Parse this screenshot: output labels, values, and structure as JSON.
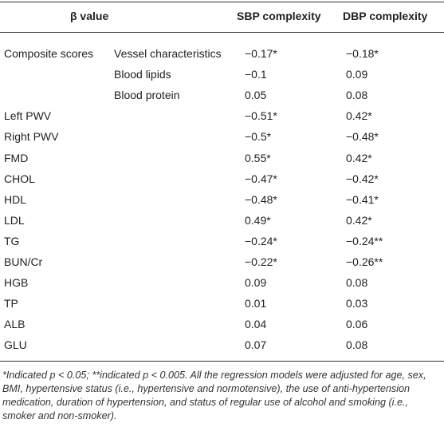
{
  "table": {
    "header": [
      "β value",
      "SBP complexity",
      "DBP complexity"
    ],
    "rows": [
      {
        "label": "Composite scores",
        "measure": "Vessel characteristics",
        "sbp": "−0.17*",
        "dbp": "−0.18*"
      },
      {
        "measure": "Blood lipids",
        "sbp": "−0.1",
        "dbp": "0.09"
      },
      {
        "measure": "Blood protein",
        "sbp": "0.05",
        "dbp": "0.08"
      },
      {
        "label": "Left PWV",
        "sbp": "−0.51*",
        "dbp": "0.42*"
      },
      {
        "label": "Right PWV",
        "sbp": "−0.5*",
        "dbp": "−0.48*"
      },
      {
        "label": "FMD",
        "sbp": "0.55*",
        "dbp": "0.42*"
      },
      {
        "label": "CHOL",
        "sbp": "−0.47*",
        "dbp": "−0.42*"
      },
      {
        "label": "HDL",
        "sbp": "−0.48*",
        "dbp": "−0.41*"
      },
      {
        "label": "LDL",
        "sbp": "0.49*",
        "dbp": "0.42*"
      },
      {
        "label": "TG",
        "sbp": "−0.24*",
        "dbp": "−0.24**"
      },
      {
        "label": "BUN/Cr",
        "sbp": "−0.22*",
        "dbp": "−0.26**"
      },
      {
        "label": "HGB",
        "sbp": "0.09",
        "dbp": "0.08"
      },
      {
        "label": "TP",
        "sbp": "0.01",
        "dbp": "0.03"
      },
      {
        "label": "ALB",
        "sbp": "0.04",
        "dbp": "0.06"
      },
      {
        "label": "GLU",
        "sbp": "0.07",
        "dbp": "0.08"
      }
    ],
    "footnote": "*Indicated p < 0.05; **indicated p < 0.005. All the regression models were adjusted for age, sex, BMI, hypertensive status (i.e., hypertensive and normotensive), the use of anti-hypertension medication, duration of hypertension, and status of regular use of alcohol and smoking (i.e., smoker and non-smoker)."
  }
}
